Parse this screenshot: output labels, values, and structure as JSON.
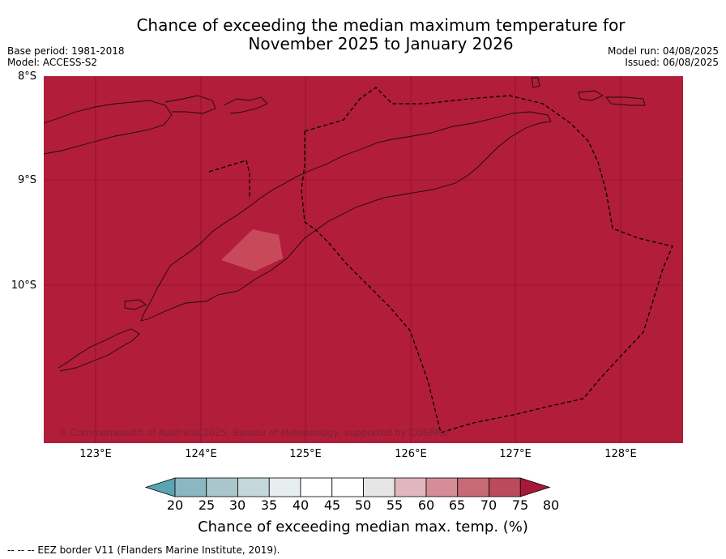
{
  "title": {
    "line1": "Chance of exceeding the median maximum temperature for",
    "line2": "November 2025 to January 2026"
  },
  "meta": {
    "base_period": "Base period: 1981-2018",
    "model": "Model: ACCESS-S2",
    "model_run": "Model run: 04/08/2025",
    "issued": "Issued: 06/08/2025"
  },
  "map": {
    "copyright": "© Commonwealth of Australia 2025, Bureau of Meteorology, supported by COSPPac",
    "fill_color": "#b21d3a",
    "highlight_color": "#c84a5a",
    "lat_labels": [
      "8°S",
      "9°S",
      "10°S"
    ],
    "lon_labels": [
      "123°E",
      "124°E",
      "125°E",
      "126°E",
      "127°E",
      "128°E"
    ]
  },
  "colorbar": {
    "ticks": [
      "20",
      "25",
      "30",
      "35",
      "40",
      "45",
      "50",
      "55",
      "60",
      "65",
      "70",
      "75",
      "80"
    ],
    "colors": [
      "#5ba4b3",
      "#8bb6c2",
      "#a8c6cc",
      "#c6d7dc",
      "#e6eef0",
      "#ffffff",
      "#ffffff",
      "#e6e6e6",
      "#e2b6bf",
      "#d58d98",
      "#c66a78",
      "#bc4a5c",
      "#a91838"
    ],
    "title": "Chance of exceeding median max. temp. (%)"
  },
  "footer": {
    "source": "--  --  -- EEZ border V11 (Flanders Marine Institute, 2019)."
  }
}
